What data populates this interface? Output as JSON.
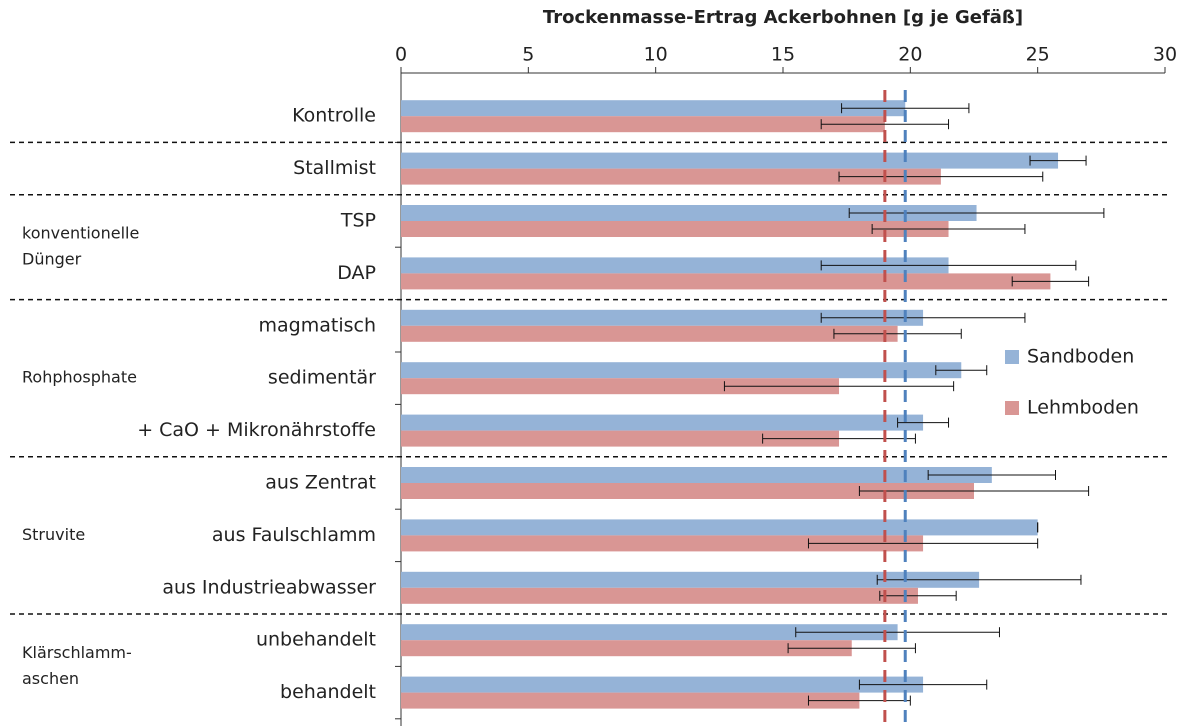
{
  "chart_data": {
    "type": "bar",
    "orientation": "horizontal",
    "title": "Trockenmasse-Ertrag  Ackerbohnen [g je Gefäß]",
    "groups": [
      {
        "categories": [
          "Kontrolle"
        ]
      },
      {
        "categories": [
          "Stallmist"
        ]
      },
      {
        "label": [
          "konventionelle",
          "Dünger"
        ],
        "categories": [
          "TSP",
          "DAP"
        ]
      },
      {
        "label": [
          "Rohphosphate"
        ],
        "categories": [
          "magmatisch",
          "sedimentär",
          "+ CaO + Mikronährstoffe"
        ]
      },
      {
        "label": [
          "Struvite"
        ],
        "categories": [
          "aus Zentrat",
          "aus Faulschlamm",
          "aus Industrieabwasser"
        ]
      },
      {
        "label": [
          "Klärschlamm-",
          "aschen"
        ],
        "categories": [
          "unbehandelt",
          "behandelt"
        ]
      }
    ],
    "series": [
      {
        "name": "Sandboden",
        "color": "#95b3d7",
        "values": [
          19.8,
          25.8,
          22.6,
          21.5,
          20.5,
          22,
          20.5,
          23.2,
          25,
          22.7,
          19.5,
          20.5
        ],
        "errors": [
          2.5,
          1.1,
          5,
          5,
          4,
          1,
          1,
          2.5,
          0,
          4,
          4,
          2.5
        ]
      },
      {
        "name": "Lehmboden",
        "color": "#d99694",
        "values": [
          19,
          21.2,
          21.5,
          25.5,
          19.5,
          17.2,
          17.2,
          22.5,
          20.5,
          20.3,
          17.7,
          18
        ],
        "errors": [
          2.5,
          4,
          3,
          1.5,
          2.5,
          4.5,
          3,
          4.5,
          4.5,
          1.5,
          2.5,
          2
        ]
      }
    ],
    "reference_lines": [
      {
        "value": 19,
        "color": "#c0504d"
      },
      {
        "value": 19.8,
        "color": "#4f81bd"
      }
    ],
    "xlim": [
      0,
      30
    ],
    "xticks": [
      0,
      5,
      10,
      15,
      20,
      25,
      30
    ],
    "legend": "right"
  }
}
